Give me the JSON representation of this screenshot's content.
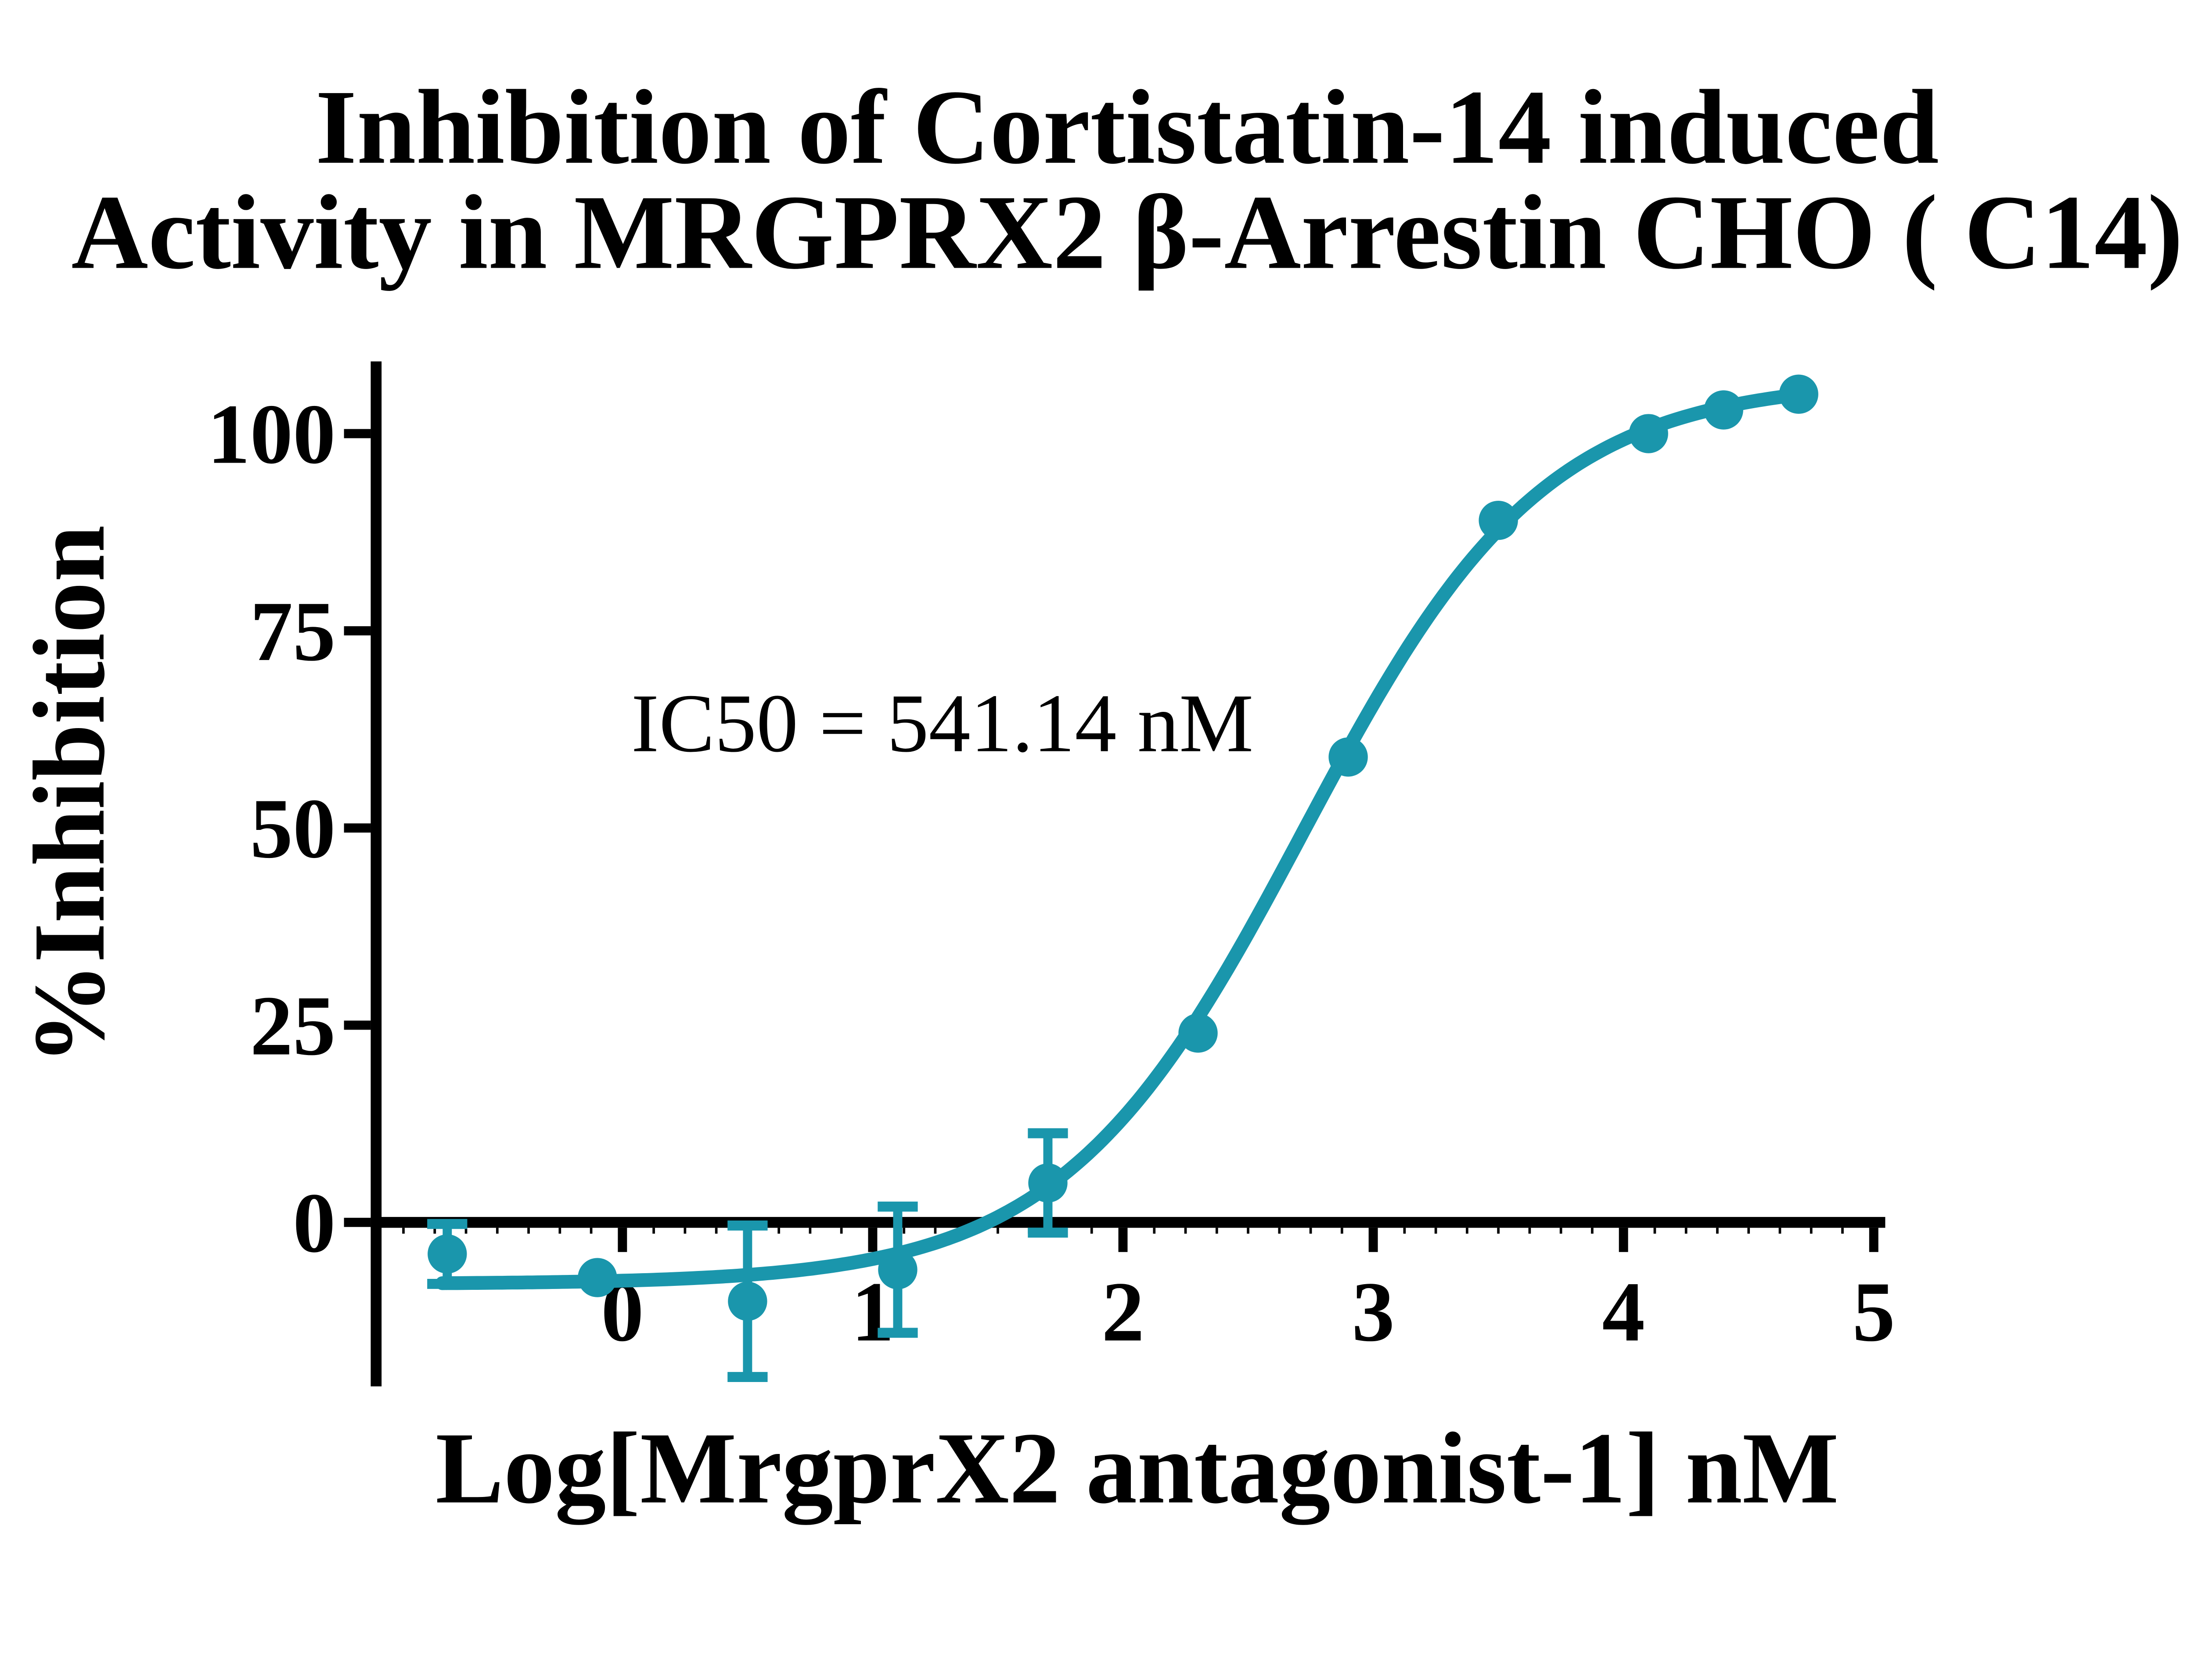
{
  "title": {
    "line1": "Inhibition of Cortistatin-14 induced",
    "line2": "Activity in MRGPRX2 β-Arrestin CHO ( C14)"
  },
  "annotation": {
    "ic50_label": "IC50 = 541.14 nM"
  },
  "colors": {
    "series": "#1A96AC",
    "axis": "#000000",
    "text": "#000000",
    "background": "#FFFFFF"
  },
  "chart_data": {
    "type": "scatter",
    "title": "Inhibition of Cortistatin-14 induced Activity in MRGPRX2 β-Arrestin CHO ( C14)",
    "xlabel": "Log[MrgprX2 antagonist-1] nM",
    "ylabel": "%Inhibition",
    "xlim": [
      -1.0,
      5.05
    ],
    "ylim": [
      -21,
      109
    ],
    "x_ticks": [
      0,
      1,
      2,
      3,
      4,
      5
    ],
    "y_ticks": [
      0,
      25,
      50,
      75,
      100
    ],
    "x_minor_tick_step": 0.125,
    "grid": false,
    "legend": false,
    "annotation": "IC50 = 541.14 nM",
    "ic50_nM": 541.14,
    "series": [
      {
        "name": "MrgprX2 antagonist-1",
        "x": [
          -0.7,
          -0.1,
          0.5,
          1.1,
          1.7,
          2.3,
          2.9,
          3.5,
          4.1,
          4.4,
          4.7
        ],
        "y": [
          -4,
          -7,
          -10,
          -6,
          5,
          24,
          59,
          89,
          100,
          103,
          105
        ],
        "y_err": [
          3.8,
          0,
          9.6,
          8,
          6.3,
          0,
          0,
          0,
          0,
          0,
          0
        ]
      }
    ],
    "fit_curve": {
      "model": "4PL-sigmoid",
      "bottom": -7.8,
      "top": 106.8,
      "logIC50": 2.72,
      "hill": 0.9,
      "x_start": -0.72,
      "x_end": 4.7
    }
  }
}
